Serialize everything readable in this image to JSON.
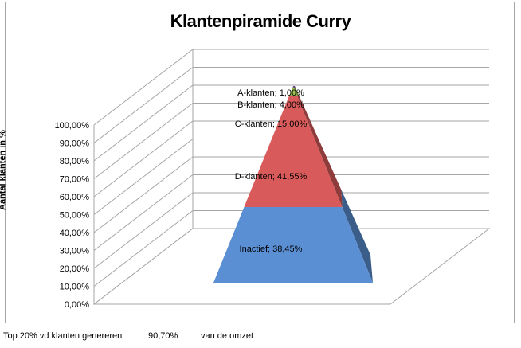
{
  "chart_data": {
    "type": "pyramid",
    "title": "Klantenpiramide Curry",
    "ylabel": "Aantal klanten in %",
    "ylim": [
      0,
      100
    ],
    "yticks": [
      "0,00%",
      "10,00%",
      "20,00%",
      "30,00%",
      "40,00%",
      "50,00%",
      "60,00%",
      "70,00%",
      "80,00%",
      "90,00%",
      "100,00%"
    ],
    "grid": true,
    "segments": [
      {
        "label": "Inactief; 38,45%",
        "value": 38.45,
        "color": "#5b8fd4"
      },
      {
        "label": "D-klanten; 41,55%",
        "value": 41.55,
        "color": "#d95a5a"
      },
      {
        "label": "C-klanten; 15,00%",
        "value": 15.0,
        "color": "#d95a5a"
      },
      {
        "label": "B-klanten; 4,00%",
        "value": 4.0,
        "color": "#9bc04f"
      },
      {
        "label": "A-klanten; 1,00%",
        "value": 1.0,
        "color": "#8064a2"
      }
    ]
  },
  "footer": {
    "text": "Top 20% vd klanten genereren",
    "value": "90,70%",
    "suffix": "van de omzet"
  }
}
